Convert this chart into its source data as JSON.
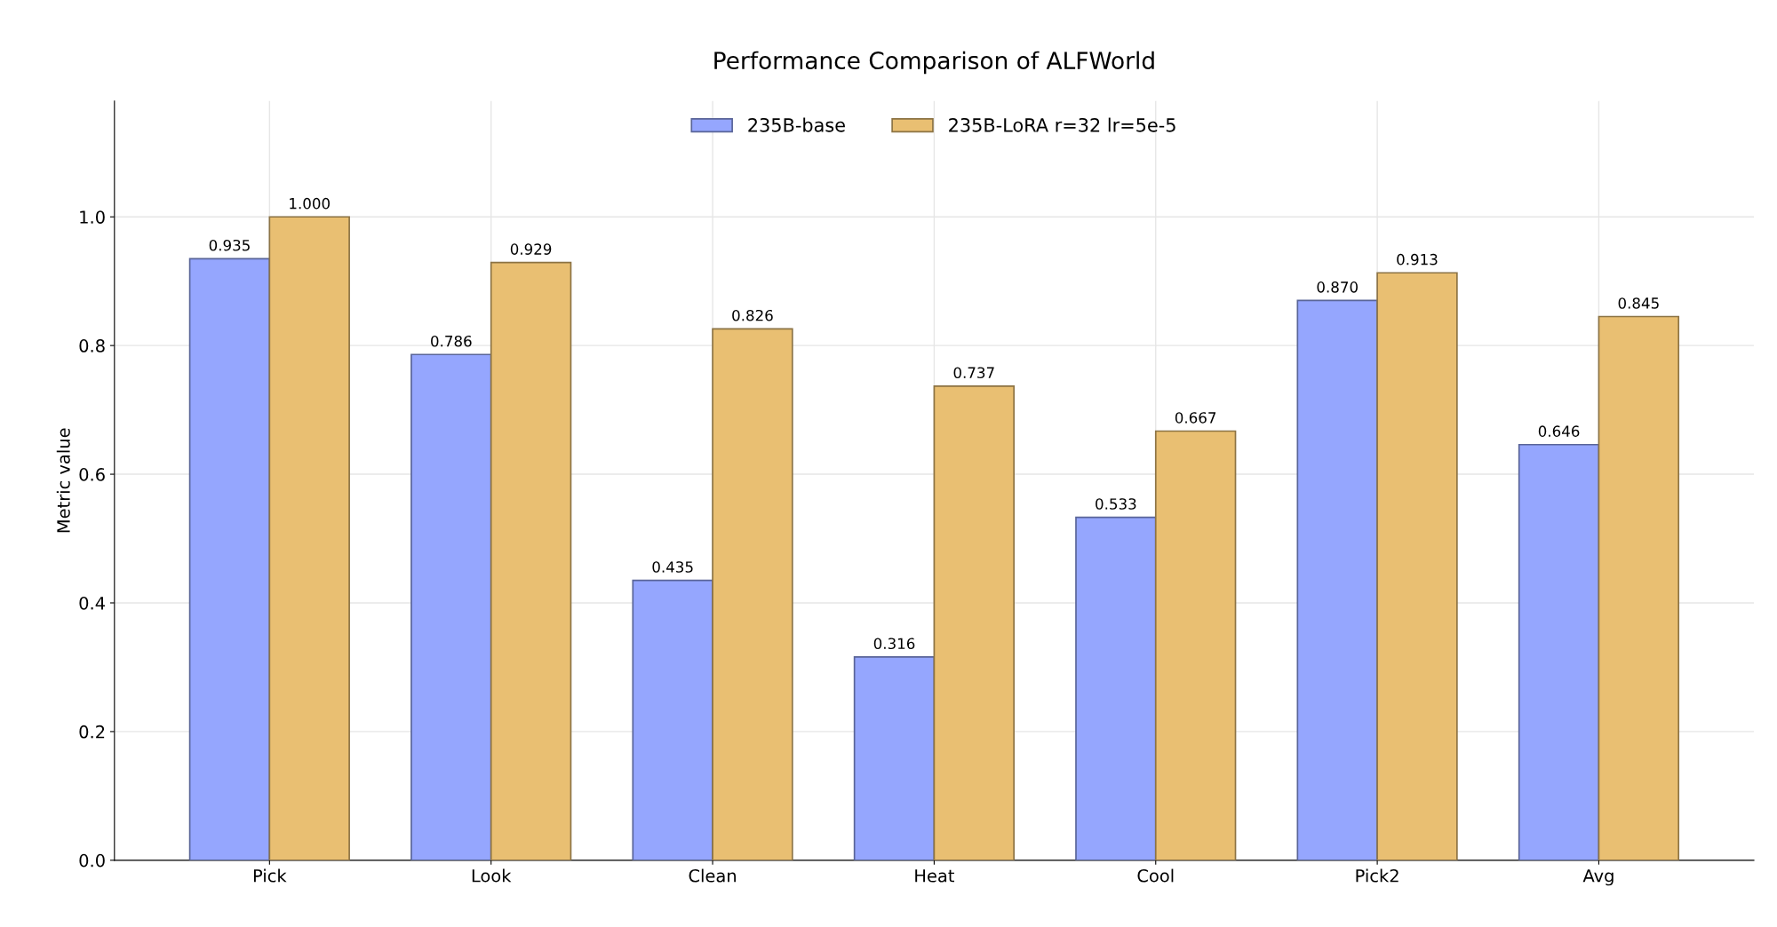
{
  "chart_data": {
    "type": "bar",
    "title": "Performance Comparison of ALFWorld",
    "ylabel": "Metric value",
    "categories": [
      "Pick",
      "Look",
      "Clean",
      "Heat",
      "Cool",
      "Pick2",
      "Avg"
    ],
    "series": [
      {
        "name": "235B-base",
        "color": "#95a6fe",
        "values": [
          0.935,
          0.786,
          0.435,
          0.316,
          0.533,
          0.87,
          0.646
        ],
        "value_labels": [
          "0.935",
          "0.786",
          "0.435",
          "0.316",
          "0.533",
          "0.870",
          "0.646"
        ]
      },
      {
        "name": "235B-LoRA r=32 lr=5e-5",
        "color": "#e9bf72",
        "values": [
          1.0,
          0.929,
          0.826,
          0.737,
          0.667,
          0.913,
          0.845
        ],
        "value_labels": [
          "1.000",
          "0.929",
          "0.826",
          "0.737",
          "0.667",
          "0.913",
          "0.845"
        ]
      }
    ],
    "ylim": [
      0,
      1.18
    ],
    "yticks": [
      {
        "value": 0,
        "label": "0.0"
      },
      {
        "value": 0.2,
        "label": "0.2"
      },
      {
        "value": 0.4,
        "label": "0.4"
      },
      {
        "value": 0.6,
        "label": "0.6"
      },
      {
        "value": 0.8,
        "label": "0.8"
      },
      {
        "value": 1.0,
        "label": "1.0"
      }
    ],
    "grid": true,
    "legend": "top"
  }
}
